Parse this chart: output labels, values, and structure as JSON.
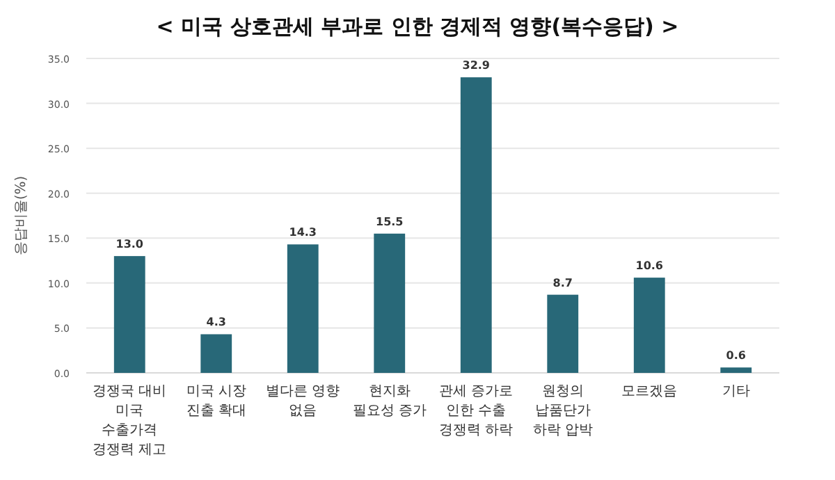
{
  "chart_data": {
    "type": "bar",
    "title": "< 미국 상호관세 부과로 인한 경제적 영향(복수응답) >",
    "ylabel": "응답비율(%)",
    "categories": [
      "경쟁국 대비 미국 수출가격 경쟁력 제고",
      "미국 시장 진출 확대",
      "별다른 영향 없음",
      "현지화 필요성 증가",
      "관세 증가로 인한 수출 경쟁력 하락",
      "원청의 납품단가 하락 압박",
      "모르겠음",
      "기타"
    ],
    "values": [
      13.0,
      4.3,
      14.3,
      15.5,
      32.9,
      8.7,
      10.6,
      0.6
    ],
    "value_labels": [
      "13.0",
      "4.3",
      "14.3",
      "15.5",
      "32.9",
      "8.7",
      "10.6",
      "0.6"
    ],
    "color": "#286878",
    "ylim": [
      0,
      35
    ],
    "yticks": [
      {
        "value": 0,
        "label": "0.0"
      },
      {
        "value": 5,
        "label": "5.0"
      },
      {
        "value": 10,
        "label": "10.0"
      },
      {
        "value": 15,
        "label": "15.0"
      },
      {
        "value": 20,
        "label": "20.0"
      },
      {
        "value": 25,
        "label": "25.0"
      },
      {
        "value": 30,
        "label": "30.0"
      },
      {
        "value": 35,
        "label": "35.0"
      }
    ],
    "grid": "y"
  }
}
